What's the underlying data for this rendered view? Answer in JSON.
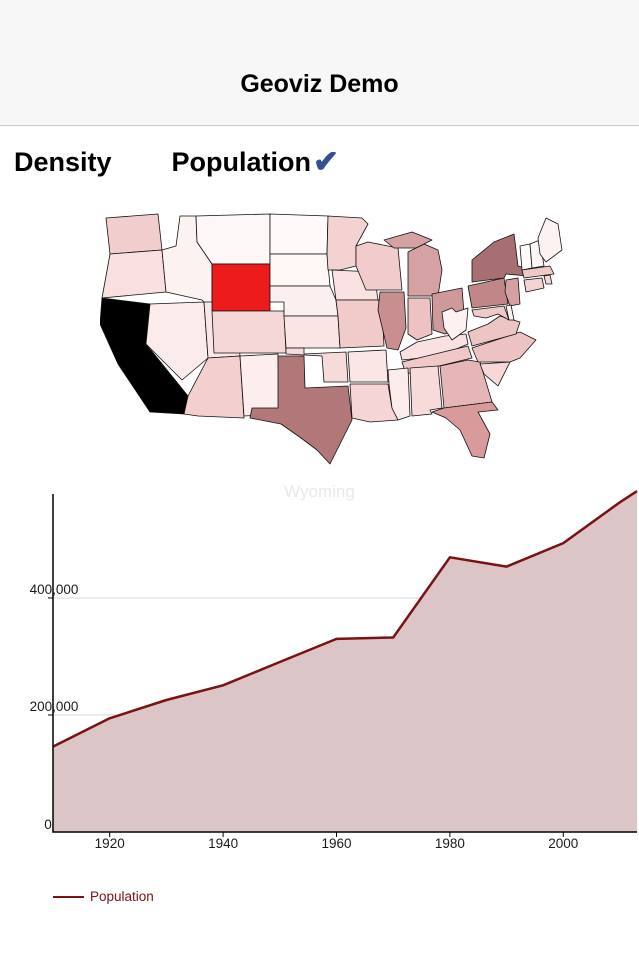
{
  "header": {
    "title": "Geoviz Demo"
  },
  "tabs": [
    {
      "label": "Density",
      "selected": false
    },
    {
      "label": "Population",
      "selected": true,
      "indicator": "✔",
      "indicator_color": "#35508f"
    }
  ],
  "map": {
    "caption": "Wyoming",
    "stroke": "#111111",
    "selected_state": "WY",
    "selected_fill": "#ee1b1d",
    "states": [
      {
        "id": "WA",
        "name": "Washington",
        "fill": "#f1cdcd"
      },
      {
        "id": "OR",
        "name": "Oregon",
        "fill": "#f9dfdf"
      },
      {
        "id": "CA",
        "name": "California",
        "fill": "#000000"
      },
      {
        "id": "NV",
        "name": "Nevada",
        "fill": "#fcebeb"
      },
      {
        "id": "ID",
        "name": "Idaho",
        "fill": "#fdf2f2"
      },
      {
        "id": "MT",
        "name": "Montana",
        "fill": "#fef7f7"
      },
      {
        "id": "WY",
        "name": "Wyoming",
        "fill": "#ee1b1d"
      },
      {
        "id": "UT",
        "name": "Utah",
        "fill": "#fae6e6"
      },
      {
        "id": "CO",
        "name": "Colorado",
        "fill": "#f6d7d7"
      },
      {
        "id": "AZ",
        "name": "Arizona",
        "fill": "#f3cfcf"
      },
      {
        "id": "NM",
        "name": "New Mexico",
        "fill": "#fdeeee"
      },
      {
        "id": "ND",
        "name": "North Dakota",
        "fill": "#fffafa"
      },
      {
        "id": "SD",
        "name": "South Dakota",
        "fill": "#fff6f6"
      },
      {
        "id": "NE",
        "name": "Nebraska",
        "fill": "#fcefef"
      },
      {
        "id": "KS",
        "name": "Kansas",
        "fill": "#fae4e4"
      },
      {
        "id": "OK",
        "name": "Oklahoma",
        "fill": "#f7dada"
      },
      {
        "id": "TX",
        "name": "Texas",
        "fill": "#b17779"
      },
      {
        "id": "MN",
        "name": "Minnesota",
        "fill": "#f4d2d2"
      },
      {
        "id": "IA",
        "name": "Iowa",
        "fill": "#fae2e2"
      },
      {
        "id": "MO",
        "name": "Missouri",
        "fill": "#f1caca"
      },
      {
        "id": "AR",
        "name": "Arkansas",
        "fill": "#fbe6e6"
      },
      {
        "id": "LA",
        "name": "Louisiana",
        "fill": "#f5d5d5"
      },
      {
        "id": "WI",
        "name": "Wisconsin",
        "fill": "#f2cccc"
      },
      {
        "id": "IL",
        "name": "Illinois",
        "fill": "#c98e90"
      },
      {
        "id": "MI",
        "name": "Michigan",
        "fill": "#d5a1a2"
      },
      {
        "id": "IN",
        "name": "Indiana",
        "fill": "#eec2c2"
      },
      {
        "id": "OH",
        "name": "Ohio",
        "fill": "#cf989a"
      },
      {
        "id": "KY",
        "name": "Kentucky",
        "fill": "#f9e1e1"
      },
      {
        "id": "TN",
        "name": "Tennessee",
        "fill": "#f0c8c8"
      },
      {
        "id": "MS",
        "name": "Mississippi",
        "fill": "#fcebeb"
      },
      {
        "id": "AL",
        "name": "Alabama",
        "fill": "#f7dada"
      },
      {
        "id": "GA",
        "name": "Georgia",
        "fill": "#e6b6b6"
      },
      {
        "id": "FL",
        "name": "Florida",
        "fill": "#d89a9b"
      },
      {
        "id": "SC",
        "name": "South Carolina",
        "fill": "#f6d8d8"
      },
      {
        "id": "NC",
        "name": "North Carolina",
        "fill": "#ecc2c2"
      },
      {
        "id": "VA",
        "name": "Virginia",
        "fill": "#edc5c5"
      },
      {
        "id": "WV",
        "name": "West Virginia",
        "fill": "#fdf1f1"
      },
      {
        "id": "PA",
        "name": "Pennsylvania",
        "fill": "#c18688"
      },
      {
        "id": "NY",
        "name": "New York",
        "fill": "#a86f72"
      },
      {
        "id": "NJ",
        "name": "New Jersey",
        "fill": "#d5a0a1"
      },
      {
        "id": "MD",
        "name": "Maryland",
        "fill": "#f0c9c9"
      },
      {
        "id": "DE",
        "name": "Delaware",
        "fill": "#fdf0f0"
      },
      {
        "id": "VT",
        "name": "Vermont",
        "fill": "#fffbfb"
      },
      {
        "id": "NH",
        "name": "New Hampshire",
        "fill": "#fef5f5"
      },
      {
        "id": "ME",
        "name": "Maine",
        "fill": "#fdf2f2"
      },
      {
        "id": "MA",
        "name": "Massachusetts",
        "fill": "#efc8c8"
      },
      {
        "id": "RI",
        "name": "Rhode Island",
        "fill": "#f6d7d7"
      },
      {
        "id": "CT",
        "name": "Connecticut",
        "fill": "#f4d3d3"
      }
    ]
  },
  "chart_data": {
    "type": "area",
    "title": "",
    "xlabel": "",
    "ylabel": "",
    "series": [
      {
        "name": "Population",
        "x": [
          1910,
          1920,
          1930,
          1940,
          1950,
          1960,
          1970,
          1980,
          1990,
          2000,
          2010,
          2013
        ],
        "values": [
          145965,
          194402,
          225565,
          250742,
          290529,
          330066,
          332416,
          469557,
          453588,
          493782,
          563626,
          582658
        ]
      }
    ],
    "x_ticks": [
      1920,
      1940,
      1960,
      1980,
      2000
    ],
    "y_ticks": [
      {
        "value": 0,
        "label": "0"
      },
      {
        "value": 200000,
        "label": "200,000"
      },
      {
        "value": 400000,
        "label": "400,000"
      }
    ],
    "xlim": [
      1910,
      2013
    ],
    "ylim": [
      0,
      576000
    ],
    "grid": true,
    "legend_position": "bottom-left",
    "line_color": "#7a1113",
    "area_color": "#dbc5c6",
    "axis_color": "#000000",
    "grid_color": "#d9d9d9"
  },
  "legend": {
    "label": "Population",
    "color": "#7a1113"
  }
}
